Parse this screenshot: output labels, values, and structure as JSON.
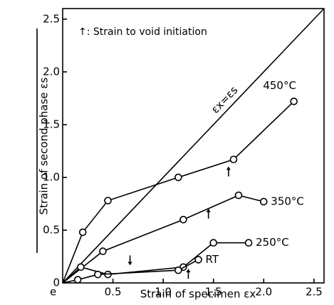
{
  "chart_data": {
    "type": "line",
    "annotation": "↑: Strain to void initiation",
    "reference_label": "εx=εs",
    "xlabel": "Strain of specimen εx",
    "ylabel": "Strain of second phase εs",
    "margin_text": "e",
    "xlim": [
      0,
      2.6
    ],
    "ylim": [
      0,
      2.6
    ],
    "xticks": [
      0.5,
      {
        "value": 1,
        "label": "1.0"
      },
      1.5,
      {
        "value": 2,
        "label": "2.0"
      },
      2.5
    ],
    "yticks": [
      0,
      0.5,
      {
        "value": 1,
        "label": "1.0"
      },
      1.5,
      {
        "value": 2,
        "label": "2.0"
      },
      2.5
    ],
    "color": "#000000",
    "series": [
      {
        "name": "450°C",
        "x": [
          0,
          0.2,
          0.45,
          1.15,
          1.7,
          2.3
        ],
        "values": [
          0,
          0.48,
          0.78,
          1.0,
          1.17,
          1.72
        ]
      },
      {
        "name": "350°C",
        "x": [
          0,
          0.4,
          1.2,
          1.75,
          2.0
        ],
        "values": [
          0,
          0.3,
          0.6,
          0.83,
          0.77
        ]
      },
      {
        "name": "250°C",
        "x": [
          0,
          0.18,
          0.45,
          1.2,
          1.5,
          1.85
        ],
        "values": [
          0,
          0.15,
          0.08,
          0.15,
          0.38,
          0.38
        ]
      },
      {
        "name": "RT",
        "x": [
          0,
          0.15,
          0.35,
          1.15,
          1.35
        ],
        "values": [
          0,
          0.03,
          0.08,
          0.12,
          0.22
        ]
      }
    ],
    "arrows": [
      {
        "x": 1.65,
        "y": 1.05,
        "direction": "up"
      },
      {
        "x": 1.45,
        "y": 0.65,
        "direction": "up"
      },
      {
        "x": 0.67,
        "y": 0.22,
        "direction": "down"
      },
      {
        "x": 1.25,
        "y": 0.08,
        "direction": "up"
      }
    ]
  }
}
